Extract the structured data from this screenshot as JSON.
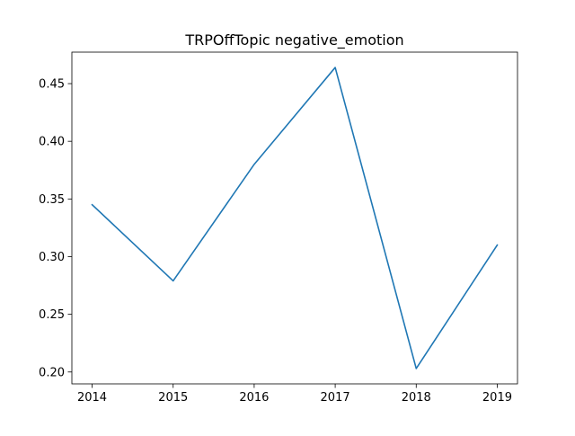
{
  "chart_data": {
    "type": "line",
    "title": "TRPOffTopic negative_emotion",
    "xlabel": "",
    "ylabel": "",
    "x": [
      2014,
      2015,
      2016,
      2017,
      2018,
      2019
    ],
    "series": [
      {
        "values": [
          0.345,
          0.279,
          0.38,
          0.464,
          0.203,
          0.31
        ],
        "color": "#1f77b4"
      }
    ],
    "xlim": [
      2013.75,
      2019.25
    ],
    "ylim": [
      0.1897,
      0.4773
    ],
    "xticks": [
      2014,
      2015,
      2016,
      2017,
      2018,
      2019
    ],
    "xtick_labels": [
      "2014",
      "2015",
      "2016",
      "2017",
      "2018",
      "2019"
    ],
    "yticks": [
      0.2,
      0.25,
      0.3,
      0.35,
      0.4,
      0.45
    ],
    "ytick_labels": [
      "0.20",
      "0.25",
      "0.30",
      "0.35",
      "0.40",
      "0.45"
    ],
    "grid": false,
    "legend": false
  }
}
